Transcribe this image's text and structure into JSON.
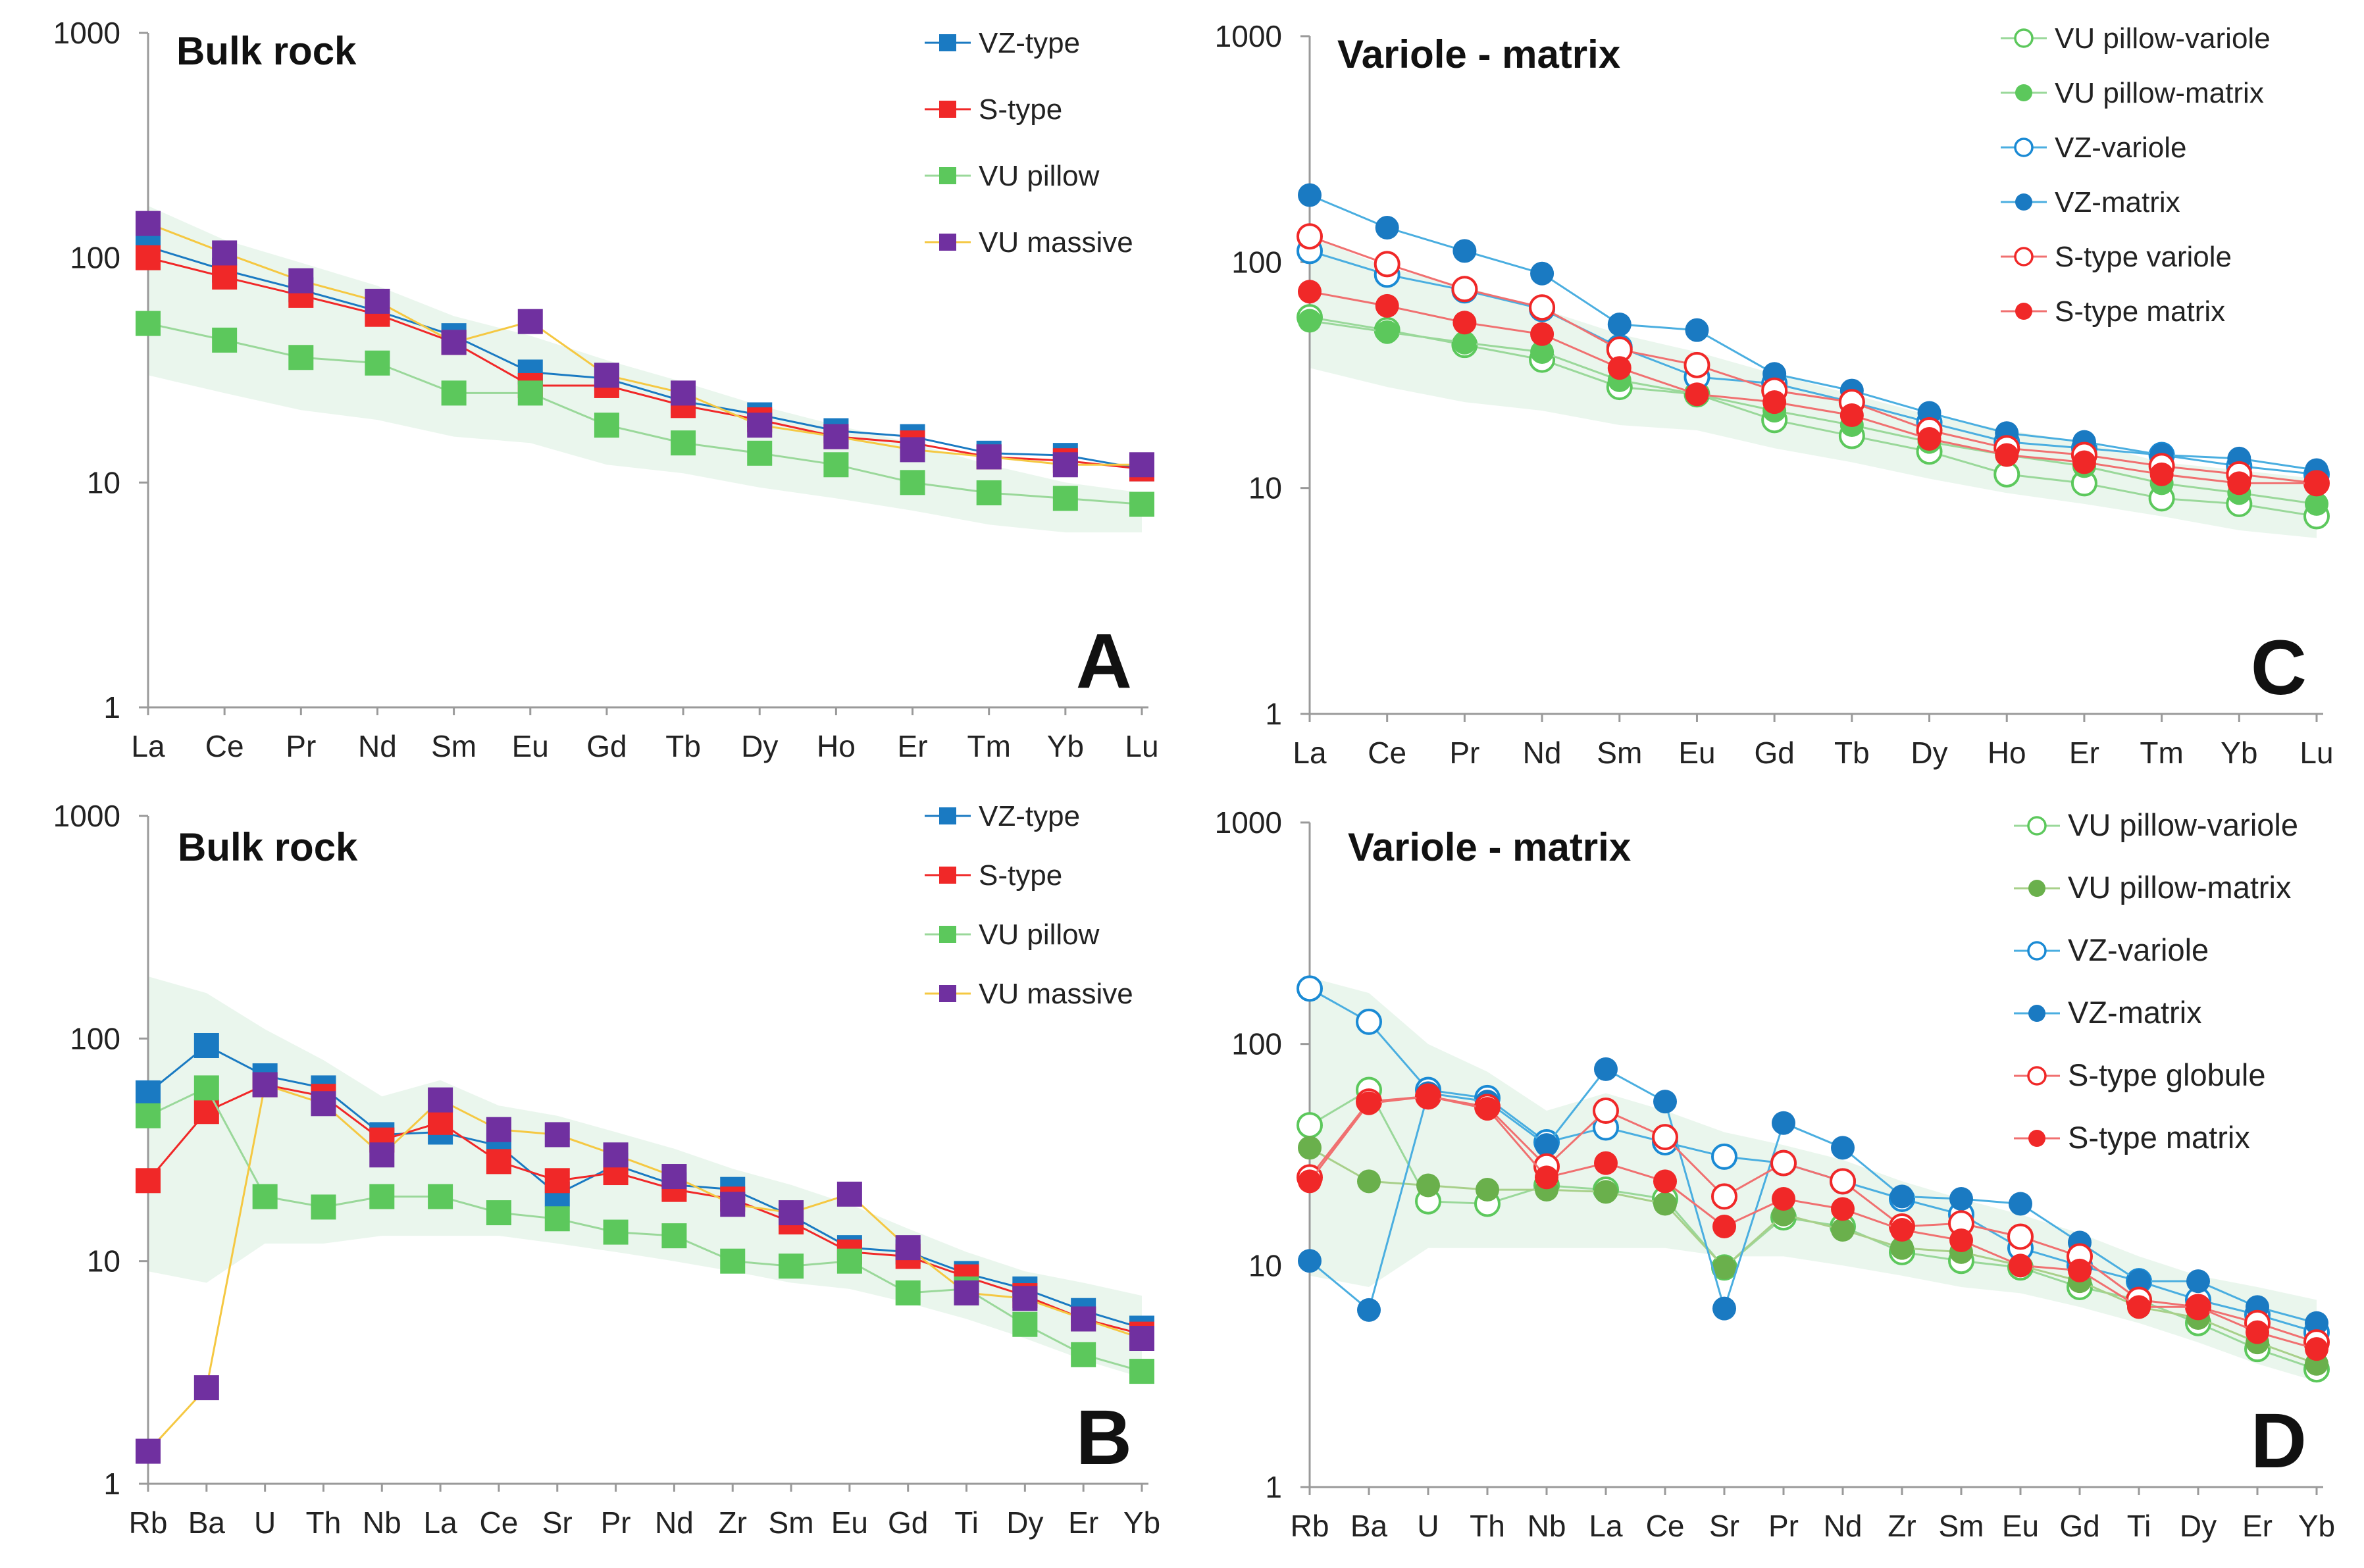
{
  "chart_data": [
    {
      "type": "line",
      "id": "A",
      "title": "Bulk rock",
      "panel_letter": "A",
      "marker_shape": "square",
      "x": [
        "La",
        "Ce",
        "Pr",
        "Nd",
        "Sm",
        "Eu",
        "Gd",
        "Tb",
        "Dy",
        "Ho",
        "Er",
        "Tm",
        "Yb",
        "Lu"
      ],
      "yscale": "log",
      "ylim": [
        1,
        1000
      ],
      "yticks": [
        "1",
        "10",
        "100",
        "1000"
      ],
      "ytick_values": [
        1,
        10,
        100,
        1000
      ],
      "band": {
        "color": "#e6f4ea",
        "upper": [
          170,
          120,
          95,
          75,
          55,
          45,
          35,
          28,
          22,
          18,
          15,
          12,
          10,
          9
        ],
        "lower": [
          30,
          25,
          21,
          19,
          16,
          15,
          12,
          11,
          9.5,
          8.5,
          7.5,
          6.5,
          6,
          6
        ]
      },
      "series": [
        {
          "name": "VZ-type",
          "color": "#1a7ac2",
          "line": "#1a7ac2",
          "values": [
            112,
            88,
            72,
            58,
            45,
            31,
            29,
            23,
            20,
            17,
            16,
            13.5,
            13.2,
            11.5
          ]
        },
        {
          "name": "S-type",
          "color": "#f02828",
          "line": "#f02828",
          "values": [
            100,
            82,
            68,
            56,
            42,
            27,
            27,
            22,
            19,
            16,
            15,
            13,
            12.5,
            11.5
          ]
        },
        {
          "name": "VU pillow",
          "color": "#5cc85c",
          "line": "#9ad89a",
          "values": [
            51,
            43,
            36,
            34,
            25,
            25,
            18,
            15,
            13.5,
            12,
            10,
            9,
            8.5,
            8
          ]
        },
        {
          "name": "VU massive",
          "color": "#7030a0",
          "line": "#f5c842",
          "values": [
            142,
            105,
            79,
            64,
            42,
            52,
            30,
            25,
            18,
            16,
            14,
            13,
            12,
            12
          ]
        }
      ],
      "legend": {
        "position": "top-right",
        "style": "square"
      }
    },
    {
      "type": "line",
      "id": "C",
      "title": "Variole - matrix",
      "panel_letter": "C",
      "marker_shape": "circle",
      "x": [
        "La",
        "Ce",
        "Pr",
        "Nd",
        "Sm",
        "Eu",
        "Gd",
        "Tb",
        "Dy",
        "Ho",
        "Er",
        "Tm",
        "Yb",
        "Lu"
      ],
      "yscale": "log",
      "ylim": [
        1,
        1000
      ],
      "yticks": [
        "1",
        "10",
        "100",
        "1000"
      ],
      "ytick_values": [
        1,
        10,
        100,
        1000
      ],
      "band": {
        "color": "#e6f4ea",
        "upper": [
          130,
          95,
          78,
          62,
          48,
          40,
          32,
          26,
          21,
          18,
          16,
          13,
          12,
          11
        ],
        "lower": [
          34,
          28,
          24,
          22,
          19,
          18,
          15,
          13,
          11,
          9.5,
          8.5,
          7.5,
          6.5,
          6
        ]
      },
      "series": [
        {
          "name": "VU pillow-variole",
          "color": "#5cc85c",
          "line": "#9ad89a",
          "filled": false,
          "values": [
            57,
            50,
            43,
            37,
            28,
            26,
            20,
            17,
            14.5,
            11.5,
            10.5,
            9,
            8.5,
            7.5
          ]
        },
        {
          "name": "VU pillow-matrix",
          "color": "#5cc85c",
          "line": "#9ad89a",
          "filled": true,
          "values": [
            55,
            49,
            44,
            40,
            30,
            26,
            22,
            19,
            16,
            14,
            12.5,
            10.5,
            9.5,
            8.5
          ]
        },
        {
          "name": "VZ-variole",
          "color": "#1a8ad4",
          "line": "#4aaee0",
          "filled": false,
          "values": [
            112,
            88,
            75,
            62,
            42,
            31,
            29,
            24,
            19.5,
            16,
            15,
            14,
            12.5,
            11.5
          ]
        },
        {
          "name": "VZ-matrix",
          "color": "#1a7ac2",
          "line": "#4aaee0",
          "filled": true,
          "values": [
            198,
            142,
            112,
            89,
            53,
            50,
            32,
            27,
            21.5,
            17.5,
            16,
            14,
            13.5,
            12
          ]
        },
        {
          "name": "S-type variole",
          "color": "#f02828",
          "line": "#f07070",
          "filled": false,
          "values": [
            130,
            98,
            76,
            63,
            41,
            35,
            27,
            24,
            18,
            15,
            14,
            12.5,
            11.5,
            10.5
          ]
        },
        {
          "name": "S-type matrix",
          "color": "#f02828",
          "line": "#f07070",
          "filled": true,
          "values": [
            74,
            64,
            54,
            48,
            34,
            26,
            24,
            21,
            16.5,
            14,
            13,
            11.5,
            10.5,
            10.5
          ]
        }
      ],
      "legend": {
        "position": "top-right",
        "style": "circle"
      }
    },
    {
      "type": "line",
      "id": "B",
      "title": "Bulk rock",
      "panel_letter": "B",
      "marker_shape": "square",
      "x": [
        "Rb",
        "Ba",
        "U",
        "Th",
        "Nb",
        "La",
        "Ce",
        "Sr",
        "Pr",
        "Nd",
        "Zr",
        "Sm",
        "Eu",
        "Gd",
        "Ti",
        "Dy",
        "Er",
        "Yb"
      ],
      "yscale": "log",
      "ylim": [
        1,
        1000
      ],
      "yticks": [
        "1",
        "10",
        "100",
        "1000"
      ],
      "ytick_values": [
        1,
        10,
        100,
        1000
      ],
      "band": {
        "color": "#e6f4ea",
        "upper": [
          190,
          160,
          110,
          80,
          55,
          65,
          50,
          45,
          38,
          32,
          26,
          22,
          18,
          14,
          11,
          9,
          8,
          7
        ],
        "lower": [
          9,
          8,
          12,
          12,
          13,
          13,
          13,
          12,
          11,
          10,
          9,
          8,
          7.5,
          6.5,
          5.5,
          4.5,
          3.6,
          3
        ]
      },
      "series": [
        {
          "name": "VZ-type",
          "color": "#1a7ac2",
          "line": "#1a7ac2",
          "values": [
            57,
            93,
            68,
            60,
            37,
            38,
            33,
            20,
            27,
            22,
            21,
            16,
            11.5,
            11,
            8.8,
            7.5,
            6,
            5
          ]
        },
        {
          "name": "S-type",
          "color": "#f02828",
          "line": "#f02828",
          "values": [
            23,
            47,
            62,
            55,
            35,
            42,
            28,
            23,
            25,
            21,
            19,
            15,
            11,
            10.5,
            8.5,
            7,
            5.5,
            4.7
          ]
        },
        {
          "name": "VU pillow",
          "color": "#5cc85c",
          "line": "#9ad89a",
          "values": [
            45,
            60,
            19.5,
            17.5,
            19.5,
            19.5,
            16.5,
            15.5,
            13.5,
            13,
            10,
            9.5,
            10,
            7.2,
            7.5,
            5.2,
            3.8,
            3.2
          ]
        },
        {
          "name": "VU massive",
          "color": "#7030a0",
          "line": "#f5c842",
          "values": [
            1.4,
            2.7,
            62,
            51,
            30,
            53,
            39,
            37,
            30,
            24,
            18,
            16.5,
            20,
            11.5,
            7.2,
            6.8,
            5.5,
            4.5
          ]
        }
      ],
      "legend": {
        "position": "top-right",
        "style": "square"
      }
    },
    {
      "type": "line",
      "id": "D",
      "title": "Variole - matrix",
      "panel_letter": "D",
      "marker_shape": "circle",
      "x": [
        "Rb",
        "Ba",
        "U",
        "Th",
        "Nb",
        "La",
        "Ce",
        "Sr",
        "Pr",
        "Nd",
        "Zr",
        "Sm",
        "Eu",
        "Gd",
        "Ti",
        "Dy",
        "Er",
        "Yb"
      ],
      "yscale": "log",
      "ylim": [
        1,
        1000
      ],
      "yticks": [
        "1",
        "10",
        "100",
        "1000"
      ],
      "ytick_values": [
        1,
        10,
        100,
        1000
      ],
      "band": {
        "color": "#e6f4ea",
        "upper": [
          200,
          170,
          100,
          75,
          50,
          60,
          50,
          40,
          35,
          30,
          24,
          20,
          17,
          14,
          11,
          9,
          8,
          7
        ],
        "lower": [
          9,
          8,
          12,
          12,
          12,
          12,
          12,
          11,
          11,
          10,
          9,
          8,
          7.5,
          6.5,
          5.5,
          4.5,
          3.6,
          3
        ]
      },
      "series": [
        {
          "name": "VU pillow-variole",
          "color": "#5cc85c",
          "line": "#9ad89a",
          "filled": false,
          "values": [
            43,
            62,
            19.5,
            19,
            23,
            22,
            20,
            9.8,
            16.5,
            15,
            11.5,
            10.5,
            9.8,
            8,
            7,
            5.5,
            4.2,
            3.4
          ]
        },
        {
          "name": "VU pillow-matrix",
          "color": "#6ab04c",
          "line": "#a8d08a",
          "filled": true,
          "values": [
            34,
            24,
            23,
            22,
            22,
            21.5,
            19,
            9.8,
            17,
            14.5,
            12,
            11.5,
            10,
            8.5,
            6.5,
            5.8,
            4.5,
            3.6
          ]
        },
        {
          "name": "VZ-variole",
          "color": "#1a8ad4",
          "line": "#4aaee0",
          "filled": false,
          "values": [
            178,
            126,
            62,
            57,
            36,
            42,
            36,
            31,
            29,
            24,
            20,
            17,
            12,
            10,
            8.5,
            7,
            6,
            5
          ]
        },
        {
          "name": "VZ-matrix",
          "color": "#1a7ac2",
          "line": "#4aaee0",
          "filled": true,
          "values": [
            10.5,
            6.3,
            60,
            55,
            35,
            77,
            55,
            6.4,
            44,
            34,
            20.5,
            20,
            19,
            12.7,
            8.5,
            8.5,
            6.5,
            5.5
          ]
        },
        {
          "name": "S-type globule",
          "color": "#f02828",
          "line": "#f07070",
          "filled": false,
          "values": [
            25,
            55,
            58,
            52,
            28,
            50,
            38,
            20.5,
            29,
            24,
            15,
            15.5,
            13.5,
            11,
            7,
            6.5,
            5.5,
            4.5
          ]
        },
        {
          "name": "S-type matrix",
          "color": "#f02828",
          "line": "#f07070",
          "filled": true,
          "values": [
            24,
            54,
            58,
            51,
            25,
            29,
            24,
            15,
            20,
            18,
            14.5,
            13,
            10,
            9.5,
            6.5,
            6.5,
            5,
            4.2
          ]
        }
      ],
      "legend": {
        "position": "top-right",
        "style": "circle"
      }
    }
  ]
}
